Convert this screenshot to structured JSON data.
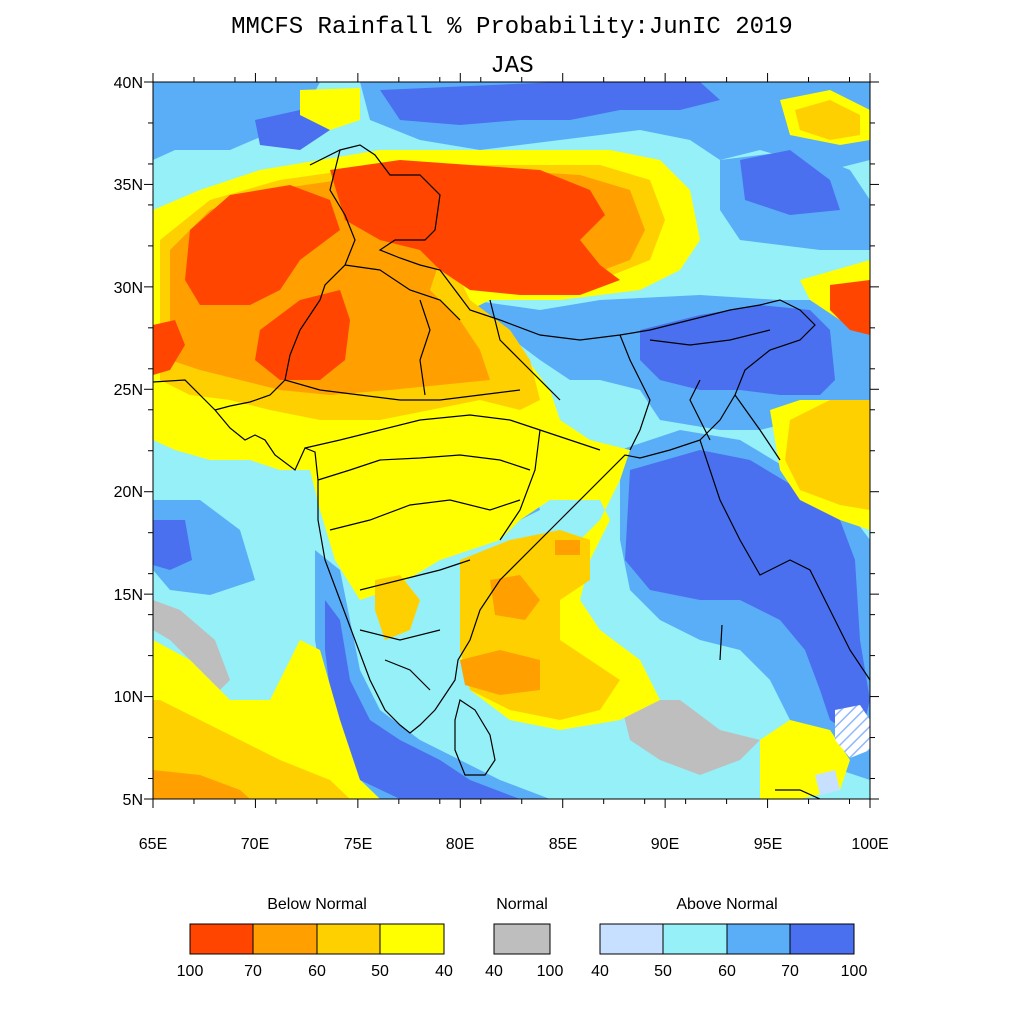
{
  "title": "MMCFS Rainfall % Probability:JunIC 2019",
  "subtitle": "JAS",
  "colors": {
    "bn_100": "#ff4500",
    "bn_70": "#ffa000",
    "bn_60": "#ffd000",
    "bn_50": "#ffff00",
    "normal": "#bebebe",
    "an_40": "#c8e0ff",
    "an_50": "#96f0f8",
    "an_60": "#5aaef8",
    "an_70": "#4a70f0",
    "border": "#000000"
  },
  "axes": {
    "y_labels": [
      "40N",
      "35N",
      "30N",
      "25N",
      "20N",
      "15N",
      "10N",
      "5N"
    ],
    "x_labels": [
      "65E",
      "70E",
      "75E",
      "80E",
      "85E",
      "90E",
      "95E",
      "100E"
    ]
  },
  "legend": {
    "below_title": "Below Normal",
    "normal_title": "Normal",
    "above_title": "Above Normal",
    "below_ticks": [
      "100",
      "70",
      "60",
      "50",
      "40"
    ],
    "normal_ticks": [
      "40",
      "100"
    ],
    "above_ticks": [
      "40",
      "50",
      "60",
      "70",
      "100"
    ]
  }
}
